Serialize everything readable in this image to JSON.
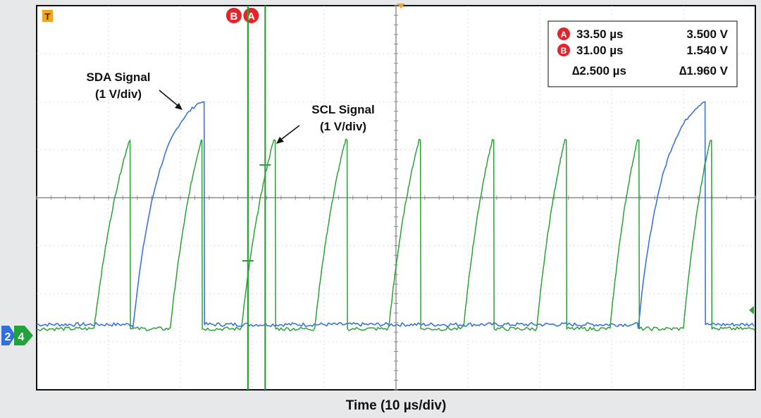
{
  "chart_data": {
    "type": "line",
    "xlabel": "Time (10 µs/div)",
    "x_divisions": 10,
    "y_divisions": 8,
    "x_range_us": [
      0,
      100
    ],
    "grid": true,
    "series": [
      {
        "name": "SDA Signal",
        "label_lines": [
          "SDA Signal",
          "(1 V/div)"
        ],
        "channel": "2",
        "color": "#3a73e0",
        "pulses": [
          {
            "rise_start": 13.4,
            "rise_end": 22.8,
            "fall": 23.3,
            "peak_div": 4.7
          },
          {
            "rise_start": 83.7,
            "rise_end": 92.8,
            "fall": 93.0,
            "peak_div": 4.7
          }
        ]
      },
      {
        "name": "SCL Signal",
        "label_lines": [
          "SCL Signal",
          "(1 V/div)"
        ],
        "channel": "4",
        "color": "#2aa236",
        "pulses": [
          {
            "rise_start": 8.0,
            "rise_end": 12.9,
            "fall": 13.0,
            "peak_div": 3.9
          },
          {
            "rise_start": 18.6,
            "rise_end": 22.9,
            "fall": 23.0,
            "peak_div": 3.9
          },
          {
            "rise_start": 28.5,
            "rise_end": 33.0,
            "fall": 33.2,
            "peak_div": 3.9
          },
          {
            "rise_start": 38.7,
            "rise_end": 43.0,
            "fall": 43.2,
            "peak_div": 3.9
          },
          {
            "rise_start": 49.0,
            "rise_end": 53.2,
            "fall": 53.4,
            "peak_div": 3.9
          },
          {
            "rise_start": 59.4,
            "rise_end": 63.4,
            "fall": 63.6,
            "peak_div": 3.9
          },
          {
            "rise_start": 69.6,
            "rise_end": 73.5,
            "fall": 73.7,
            "peak_div": 3.9
          },
          {
            "rise_start": 79.8,
            "rise_end": 83.6,
            "fall": 83.8,
            "peak_div": 3.9
          },
          {
            "rise_start": 90.0,
            "rise_end": 93.7,
            "fall": 93.9,
            "peak_div": 3.9
          }
        ]
      }
    ],
    "cursors": [
      {
        "label": "A",
        "time": "33.50 µs",
        "voltage": "3.500 V",
        "x_us": 31.8
      },
      {
        "label": "B",
        "time": "31.00 µs",
        "voltage": "1.540 V",
        "x_us": 29.4
      }
    ],
    "delta": {
      "time": "∆2.500 µs",
      "voltage": "∆1.960 V"
    },
    "trigger_marker": "T",
    "colors": {
      "background": "#e7e8ea",
      "screen": "#ffffff",
      "grid": "#9a9a9a",
      "badge": "#e3242b"
    }
  }
}
